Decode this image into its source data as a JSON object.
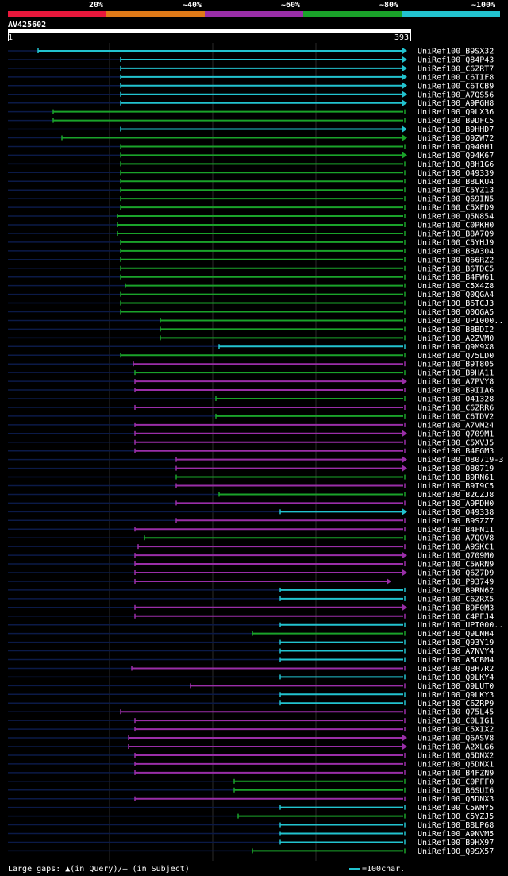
{
  "legend": {
    "labels": [
      "20%",
      "~40%",
      "~60%",
      "~80%",
      "~100%"
    ],
    "colors": [
      "#e8183c",
      "#e07a18",
      "#9a2ea8",
      "#1aa32a",
      "#22c3cf"
    ]
  },
  "query": {
    "id": "AV425602",
    "start": "1",
    "end": "393"
  },
  "footer": {
    "gaps": "Large gaps: ▲(in Query)/– (in Subject)",
    "scale": "=100char."
  },
  "colors": {
    "c": "#22c3cf",
    "g": "#1aa32a",
    "p": "#9a2ea8",
    "faint": "#0b1a48",
    "marker": "#fffb8c",
    "grid": "#2a2a2a"
  },
  "hits": [
    {
      "name": "UniRef100_B9SX32",
      "s": 48,
      "c": "c",
      "a": 1
    },
    {
      "name": "UniRef100_Q84P43",
      "s": 152,
      "c": "c",
      "a": 1
    },
    {
      "name": "UniRef100_C6ZRT7",
      "s": 152,
      "c": "c",
      "a": 1
    },
    {
      "name": "UniRef100_C6TIF8",
      "s": 152,
      "c": "c",
      "a": 1
    },
    {
      "name": "UniRef100_C6TCB9",
      "s": 152,
      "c": "c",
      "a": 1
    },
    {
      "name": "UniRef100_A7QS56",
      "s": 152,
      "c": "c",
      "a": 1
    },
    {
      "name": "UniRef100_A9PGH8",
      "s": 152,
      "c": "c",
      "a": 1
    },
    {
      "name": "UniRef100_Q9LX36",
      "s": 67,
      "c": "g",
      "a": 0
    },
    {
      "name": "UniRef100_B9DFC5",
      "s": 67,
      "c": "g",
      "a": 0
    },
    {
      "name": "UniRef100_B9HHD7",
      "s": 152,
      "c": "c",
      "a": 1
    },
    {
      "name": "UniRef100_Q9ZW72",
      "s": 78,
      "c": "g",
      "a": 1
    },
    {
      "name": "UniRef100_Q940H1",
      "s": 152,
      "c": "g",
      "a": 0
    },
    {
      "name": "UniRef100_Q94K67",
      "s": 152,
      "c": "g",
      "a": 1
    },
    {
      "name": "UniRef100_Q8H1G6",
      "s": 152,
      "c": "g",
      "a": 0
    },
    {
      "name": "UniRef100_O49339",
      "s": 152,
      "c": "g",
      "a": 0
    },
    {
      "name": "UniRef100_B8LKU4",
      "s": 152,
      "c": "g",
      "a": 0
    },
    {
      "name": "UniRef100_C5YZ13",
      "s": 152,
      "c": "g",
      "a": 0
    },
    {
      "name": "UniRef100_Q69IN5",
      "s": 152,
      "c": "g",
      "a": 0
    },
    {
      "name": "UniRef100_C5XFD9",
      "s": 152,
      "c": "g",
      "a": 0
    },
    {
      "name": "UniRef100_Q5N854",
      "s": 148,
      "c": "g",
      "a": 0
    },
    {
      "name": "UniRef100_C0PKH0",
      "s": 148,
      "c": "g",
      "a": 0
    },
    {
      "name": "UniRef100_B8A7Q9",
      "s": 148,
      "c": "g",
      "a": 0
    },
    {
      "name": "UniRef100_C5YHJ9",
      "s": 152,
      "c": "g",
      "a": 0
    },
    {
      "name": "UniRef100_B8A304",
      "s": 152,
      "c": "g",
      "a": 0
    },
    {
      "name": "UniRef100_Q66RZ2",
      "s": 152,
      "c": "g",
      "a": 0
    },
    {
      "name": "UniRef100_B6TDC5",
      "s": 152,
      "c": "g",
      "a": 0
    },
    {
      "name": "UniRef100_B4FW61",
      "s": 152,
      "c": "g",
      "a": 0
    },
    {
      "name": "UniRef100_C5X4Z8",
      "s": 158,
      "c": "g",
      "a": 0
    },
    {
      "name": "UniRef100_Q0QGA4",
      "s": 152,
      "c": "g",
      "a": 0
    },
    {
      "name": "UniRef100_B6TCJ3",
      "s": 152,
      "c": "g",
      "a": 0
    },
    {
      "name": "UniRef100_Q0QGA5",
      "s": 152,
      "c": "g",
      "a": 0
    },
    {
      "name": "UniRef100_UPI000..",
      "s": 202,
      "c": "g",
      "a": 0
    },
    {
      "name": "UniRef100_B8BDI2",
      "s": 202,
      "c": "g",
      "a": 0
    },
    {
      "name": "UniRef100_A2ZVM0",
      "s": 202,
      "c": "g",
      "a": 0
    },
    {
      "name": "UniRef100_Q9M9X8",
      "s": 276,
      "c": "c",
      "a": 0
    },
    {
      "name": "UniRef100_Q75LD0",
      "s": 152,
      "c": "g",
      "a": 0
    },
    {
      "name": "UniRef100_B9T805",
      "s": 168,
      "c": "p",
      "a": 0
    },
    {
      "name": "UniRef100_B9HA11",
      "s": 170,
      "c": "g",
      "a": 0
    },
    {
      "name": "UniRef100_A7PVY8",
      "s": 170,
      "c": "p",
      "a": 1
    },
    {
      "name": "UniRef100_B9IIA6",
      "s": 170,
      "c": "p",
      "a": 0
    },
    {
      "name": "UniRef100_O41328",
      "s": 272,
      "c": "g",
      "a": 0
    },
    {
      "name": "UniRef100_C6ZRR6",
      "s": 170,
      "c": "p",
      "a": 0
    },
    {
      "name": "UniRef100_C6TDV2",
      "s": 272,
      "c": "g",
      "a": 0
    },
    {
      "name": "UniRef100_A7VM24",
      "s": 170,
      "c": "p",
      "a": 0
    },
    {
      "name": "UniRef100_Q709M1",
      "s": 170,
      "c": "p",
      "a": 1
    },
    {
      "name": "UniRef100_C5XVJ5",
      "s": 170,
      "c": "p",
      "a": 0
    },
    {
      "name": "UniRef100_B4FGM3",
      "s": 170,
      "c": "p",
      "a": 0
    },
    {
      "name": "UniRef100_O80719-3",
      "s": 222,
      "c": "p",
      "a": 1
    },
    {
      "name": "UniRef100_O80719",
      "s": 222,
      "c": "p",
      "a": 1
    },
    {
      "name": "UniRef100_B9RN61",
      "s": 222,
      "c": "g",
      "a": 0
    },
    {
      "name": "UniRef100_B9I9C5",
      "s": 222,
      "c": "p",
      "a": 0
    },
    {
      "name": "UniRef100_B2CZJ8",
      "s": 276,
      "c": "g",
      "a": 0
    },
    {
      "name": "UniRef100_A9PDH0",
      "s": 222,
      "c": "p",
      "a": 0
    },
    {
      "name": "UniRef100_O49338",
      "s": 353,
      "c": "c",
      "a": 1
    },
    {
      "name": "UniRef100_B9SZZ7",
      "s": 222,
      "c": "p",
      "a": 0
    },
    {
      "name": "UniRef100_B4FN11",
      "s": 170,
      "c": "p",
      "a": 0
    },
    {
      "name": "UniRef100_A7QQV8",
      "s": 182,
      "c": "g",
      "a": 0
    },
    {
      "name": "UniRef100_A9SKC1",
      "s": 174,
      "c": "p",
      "a": 0
    },
    {
      "name": "UniRef100_Q709M0",
      "s": 170,
      "c": "p",
      "a": 1
    },
    {
      "name": "UniRef100_C5WRN9",
      "s": 170,
      "c": "p",
      "a": 0
    },
    {
      "name": "UniRef100_Q6Z7D9",
      "s": 170,
      "c": "p",
      "a": 1
    },
    {
      "name": "UniRef100_P93749",
      "s": 170,
      "c": "p",
      "a": 1,
      "e": 492
    },
    {
      "name": "UniRef100_B9RN62",
      "s": 353,
      "c": "c",
      "a": 0
    },
    {
      "name": "UniRef100_C6ZRX5",
      "s": 353,
      "c": "c",
      "a": 0
    },
    {
      "name": "UniRef100_B9F0M3",
      "s": 170,
      "c": "p",
      "a": 1
    },
    {
      "name": "UniRef100_C4PFJ4",
      "s": 170,
      "c": "p",
      "a": 0
    },
    {
      "name": "UniRef100_UPI000..",
      "s": 353,
      "c": "c",
      "a": 0
    },
    {
      "name": "UniRef100_Q9LNH4",
      "s": 318,
      "c": "g",
      "a": 0
    },
    {
      "name": "UniRef100_Q93Y19",
      "s": 353,
      "c": "c",
      "a": 0
    },
    {
      "name": "UniRef100_A7NVY4",
      "s": 353,
      "c": "c",
      "a": 0
    },
    {
      "name": "UniRef100_A5CBM4",
      "s": 353,
      "c": "c",
      "a": 0
    },
    {
      "name": "UniRef100_Q8H7R2",
      "s": 166,
      "c": "p",
      "a": 0
    },
    {
      "name": "UniRef100_Q9LKY4",
      "s": 353,
      "c": "c",
      "a": 0
    },
    {
      "name": "UniRef100_Q9LUT0",
      "s": 240,
      "c": "p",
      "a": 0
    },
    {
      "name": "UniRef100_Q9LKY3",
      "s": 353,
      "c": "c",
      "a": 0
    },
    {
      "name": "UniRef100_C6ZRP9",
      "s": 353,
      "c": "c",
      "a": 0
    },
    {
      "name": "UniRef100_Q75L45",
      "s": 152,
      "c": "p",
      "a": 0
    },
    {
      "name": "UniRef100_C0LIG1",
      "s": 170,
      "c": "p",
      "a": 0
    },
    {
      "name": "UniRef100_C5XIX2",
      "s": 170,
      "c": "p",
      "a": 0
    },
    {
      "name": "UniRef100_Q6ASV8",
      "s": 162,
      "c": "p",
      "a": 1
    },
    {
      "name": "UniRef100_A2XLG6",
      "s": 162,
      "c": "p",
      "a": 1
    },
    {
      "name": "UniRef100_Q5DNX2",
      "s": 170,
      "c": "p",
      "a": 0
    },
    {
      "name": "UniRef100_Q5DNX1",
      "s": 170,
      "c": "p",
      "a": 0
    },
    {
      "name": "UniRef100_B4FZN9",
      "s": 170,
      "c": "p",
      "a": 0
    },
    {
      "name": "UniRef100_C0PFF0",
      "s": 295,
      "c": "g",
      "a": 0
    },
    {
      "name": "UniRef100_B6SUI6",
      "s": 295,
      "c": "g",
      "a": 0
    },
    {
      "name": "UniRef100_Q5DNX3",
      "s": 170,
      "c": "p",
      "a": 0
    },
    {
      "name": "UniRef100_C5WMY5",
      "s": 353,
      "c": "c",
      "a": 0
    },
    {
      "name": "UniRef100_C5YZJ5",
      "s": 300,
      "c": "g",
      "a": 0
    },
    {
      "name": "UniRef100_B8LP68",
      "s": 353,
      "c": "c",
      "a": 0
    },
    {
      "name": "UniRef100_A9NVM5",
      "s": 353,
      "c": "c",
      "a": 0
    },
    {
      "name": "UniRef100_B9HX97",
      "s": 353,
      "c": "c",
      "a": 0
    },
    {
      "name": "UniRef100_Q9SX57",
      "s": 318,
      "c": "g",
      "a": 0
    }
  ]
}
